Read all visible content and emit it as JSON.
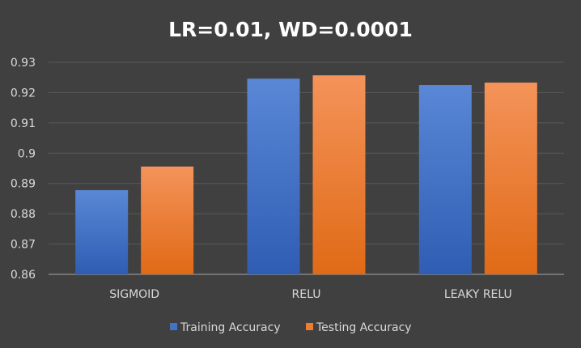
{
  "chart_data": {
    "type": "bar",
    "title": "LR=0.01, WD=0.0001",
    "xlabel": "",
    "ylabel": "",
    "categories": [
      "SIGMOID",
      "RELU",
      "LEAKY RELU"
    ],
    "series": [
      {
        "name": "Training Accuracy",
        "values": [
          0.8878,
          0.9246,
          0.9225
        ],
        "color": "#4472C4"
      },
      {
        "name": "Testing Accuracy",
        "values": [
          0.8956,
          0.9257,
          0.9233
        ],
        "color": "#ED7D31"
      }
    ],
    "ylim": [
      0.86,
      0.93
    ],
    "yticks": [
      "0.86",
      "0.87",
      "0.88",
      "0.89",
      "0.9",
      "0.91",
      "0.92",
      "0.93"
    ],
    "grid": true,
    "legend_position": "bottom",
    "background": "#404040",
    "gridline_color": "#595959"
  }
}
